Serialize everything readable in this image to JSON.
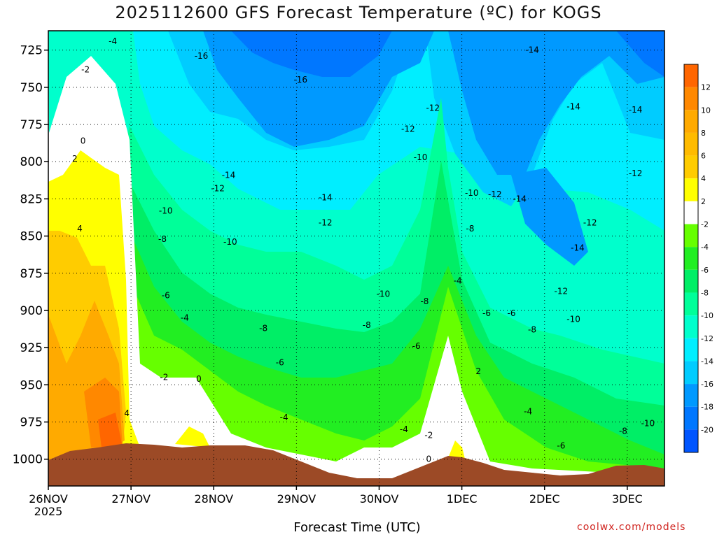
{
  "title": "2025112600 GFS Forecast Temperature (ºC) for KOGS",
  "xlabel": "Forecast Time (UTC)",
  "credit": "coolwx.com/models",
  "chart_data": {
    "type": "heatmap",
    "title": "2025112600 GFS Forecast Temperature (ºC) for KOGS",
    "xlabel": "Forecast Time (UTC)",
    "ylabel": "",
    "x_ticks": [
      "26NOV\n2025",
      "27NOV",
      "28NOV",
      "29NOV",
      "30NOV",
      "1DEC",
      "2DEC",
      "3DEC"
    ],
    "x_range_days": [
      0,
      7.45
    ],
    "y_ticks": [
      725,
      750,
      775,
      800,
      825,
      850,
      875,
      900,
      925,
      950,
      975,
      1000
    ],
    "y_range_hpa": [
      712,
      1018
    ],
    "colorbar": {
      "levels": [
        12,
        10,
        8,
        6,
        4,
        2,
        -2,
        -4,
        -6,
        -8,
        -10,
        -12,
        -14,
        -16,
        -18,
        -20
      ],
      "colors": [
        "#ff6600",
        "#ff8800",
        "#ffaa00",
        "#ffbb00",
        "#ffcc00",
        "#ffff00",
        "#ffffff",
        "#66ff00",
        "#22ee22",
        "#00ee66",
        "#00ff99",
        "#00ffcc",
        "#00eeff",
        "#00ccff",
        "#0099ff",
        "#0077ff",
        "#0055ff"
      ]
    },
    "contour_labels": [
      {
        "label": "-4",
        "t": 0.78,
        "p": 719
      },
      {
        "label": "-2",
        "t": 0.45,
        "p": 738
      },
      {
        "label": "0",
        "t": 0.42,
        "p": 786
      },
      {
        "label": "2",
        "t": 0.32,
        "p": 798
      },
      {
        "label": "4",
        "t": 0.38,
        "p": 845
      },
      {
        "label": "-16",
        "t": 1.85,
        "p": 729
      },
      {
        "label": "-16",
        "t": 3.05,
        "p": 745
      },
      {
        "label": "-14",
        "t": 2.18,
        "p": 809
      },
      {
        "label": "-12",
        "t": 2.05,
        "p": 818
      },
      {
        "label": "-14",
        "t": 3.35,
        "p": 824
      },
      {
        "label": "-12",
        "t": 3.35,
        "p": 841
      },
      {
        "label": "-10",
        "t": 1.42,
        "p": 833
      },
      {
        "label": "-8",
        "t": 1.38,
        "p": 852
      },
      {
        "label": "-10",
        "t": 2.2,
        "p": 854
      },
      {
        "label": "-6",
        "t": 1.42,
        "p": 890
      },
      {
        "label": "-4",
        "t": 1.65,
        "p": 905
      },
      {
        "label": "-8",
        "t": 2.6,
        "p": 912
      },
      {
        "label": "-6",
        "t": 2.8,
        "p": 935
      },
      {
        "label": "-4",
        "t": 2.85,
        "p": 972
      },
      {
        "label": "-2",
        "t": 1.4,
        "p": 945
      },
      {
        "label": "0",
        "t": 1.82,
        "p": 946
      },
      {
        "label": "4",
        "t": 0.95,
        "p": 969
      },
      {
        "label": "-12",
        "t": 4.35,
        "p": 778
      },
      {
        "label": "-12",
        "t": 4.65,
        "p": 764
      },
      {
        "label": "-10",
        "t": 4.5,
        "p": 797
      },
      {
        "label": "-10",
        "t": 5.12,
        "p": 821
      },
      {
        "label": "-12",
        "t": 5.4,
        "p": 822
      },
      {
        "label": "-14",
        "t": 5.7,
        "p": 825
      },
      {
        "label": "-8",
        "t": 5.1,
        "p": 845
      },
      {
        "label": "-10",
        "t": 4.05,
        "p": 889
      },
      {
        "label": "-8",
        "t": 4.55,
        "p": 894
      },
      {
        "label": "-4",
        "t": 4.95,
        "p": 880
      },
      {
        "label": "-8",
        "t": 3.85,
        "p": 910
      },
      {
        "label": "-6",
        "t": 4.45,
        "p": 924
      },
      {
        "label": "-6",
        "t": 5.3,
        "p": 902
      },
      {
        "label": "-4",
        "t": 4.3,
        "p": 980
      },
      {
        "label": "-2",
        "t": 4.6,
        "p": 984
      },
      {
        "label": "2",
        "t": 5.2,
        "p": 941
      },
      {
        "label": "0",
        "t": 4.6,
        "p": 1000
      },
      {
        "label": "-14",
        "t": 5.85,
        "p": 725
      },
      {
        "label": "-14",
        "t": 6.35,
        "p": 763
      },
      {
        "label": "-14",
        "t": 7.1,
        "p": 765
      },
      {
        "label": "-12",
        "t": 7.1,
        "p": 808
      },
      {
        "label": "-12",
        "t": 6.55,
        "p": 841
      },
      {
        "label": "-14",
        "t": 6.4,
        "p": 858
      },
      {
        "label": "-12",
        "t": 6.2,
        "p": 887
      },
      {
        "label": "-10",
        "t": 6.35,
        "p": 906
      },
      {
        "label": "-8",
        "t": 5.85,
        "p": 913
      },
      {
        "label": "-6",
        "t": 5.6,
        "p": 902
      },
      {
        "label": "-4",
        "t": 5.8,
        "p": 968
      },
      {
        "label": "-6",
        "t": 6.2,
        "p": 991
      },
      {
        "label": "-8",
        "t": 6.95,
        "p": 981
      },
      {
        "label": "-10",
        "t": 7.25,
        "p": 976
      }
    ]
  }
}
